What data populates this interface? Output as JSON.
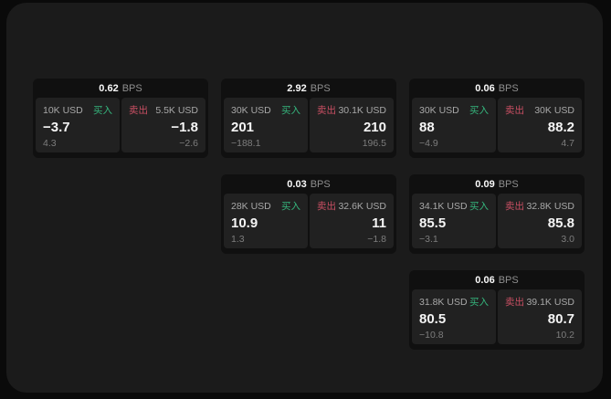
{
  "colors": {
    "background": "#0a0a0a",
    "surface": "#1b1b1b",
    "card": "#101010",
    "tile": "#212121",
    "buy": "#35b57d",
    "sell": "#c94f63"
  },
  "labels": {
    "bps_unit": "BPS",
    "buy": "买入",
    "sell": "卖出"
  },
  "cards": [
    {
      "bps": "0.62",
      "buy": {
        "size": "10K USD",
        "value": "−3.7",
        "sub": "4.3"
      },
      "sell": {
        "size": "5.5K USD",
        "value": "−1.8",
        "sub": "−2.6"
      }
    },
    {
      "bps": "2.92",
      "buy": {
        "size": "30K USD",
        "value": "201",
        "sub": "−188.1"
      },
      "sell": {
        "size": "30.1K USD",
        "value": "210",
        "sub": "196.5"
      }
    },
    {
      "bps": "0.06",
      "buy": {
        "size": "30K USD",
        "value": "88",
        "sub": "−4.9"
      },
      "sell": {
        "size": "30K USD",
        "value": "88.2",
        "sub": "4.7"
      }
    },
    {
      "bps": "0.03",
      "buy": {
        "size": "28K USD",
        "value": "10.9",
        "sub": "1.3"
      },
      "sell": {
        "size": "32.6K USD",
        "value": "11",
        "sub": "−1.8"
      }
    },
    {
      "bps": "0.09",
      "buy": {
        "size": "34.1K USD",
        "value": "85.5",
        "sub": "−3.1"
      },
      "sell": {
        "size": "32.8K USD",
        "value": "85.8",
        "sub": "3.0"
      }
    },
    {
      "bps": "0.06",
      "buy": {
        "size": "31.8K USD",
        "value": "80.5",
        "sub": "−10.8"
      },
      "sell": {
        "size": "39.1K USD",
        "value": "80.7",
        "sub": "10.2"
      }
    }
  ]
}
